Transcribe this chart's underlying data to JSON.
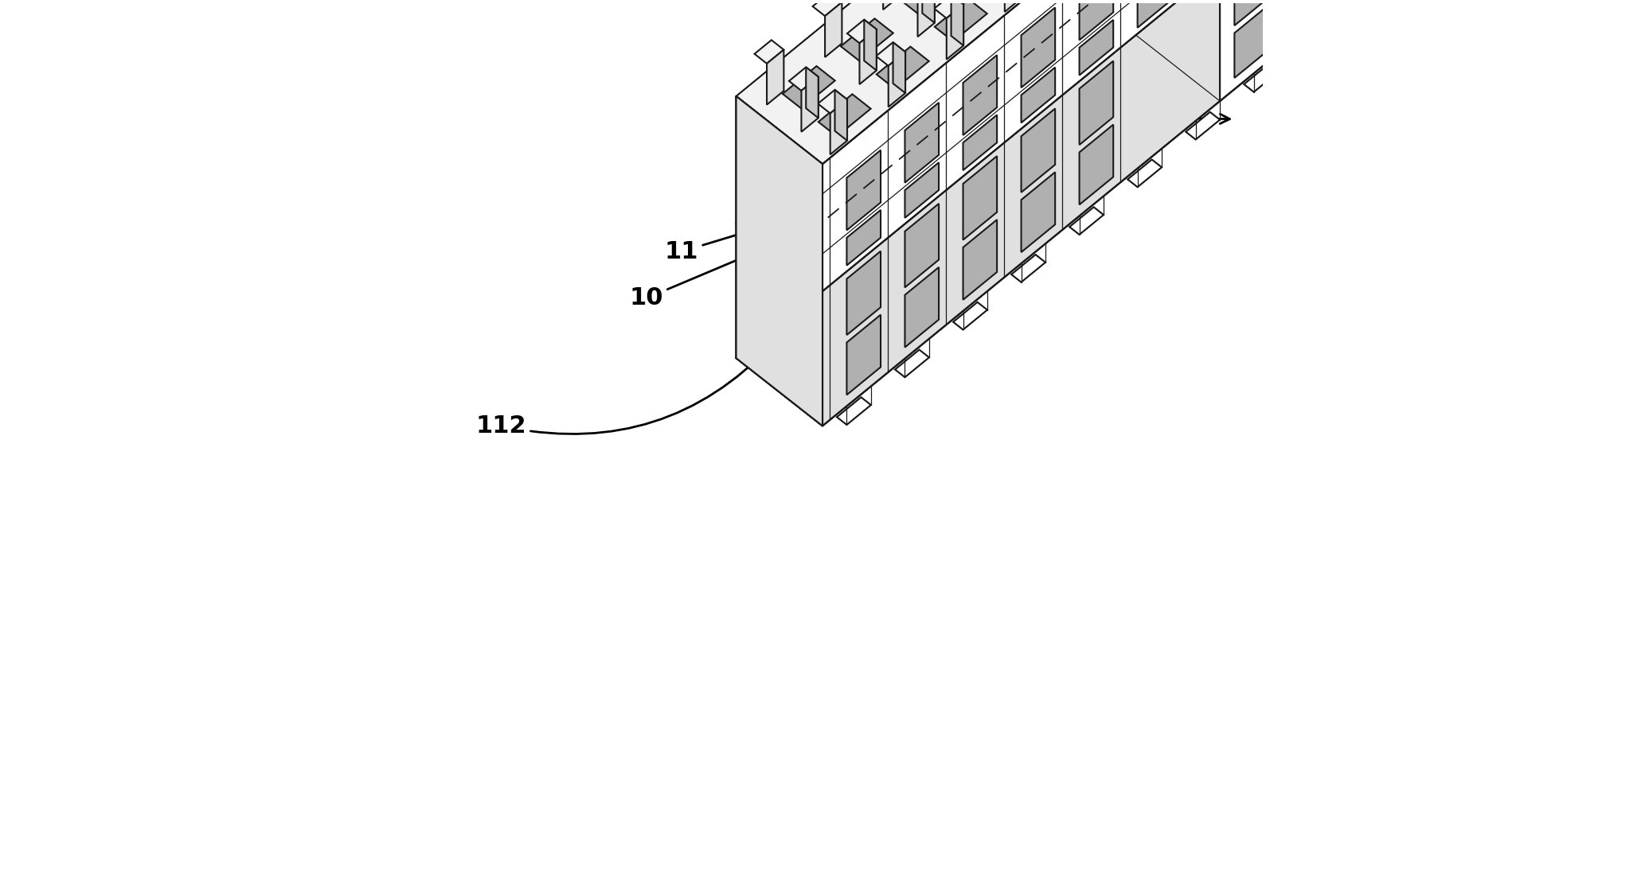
{
  "background_color": "#ffffff",
  "line_color": "#1a1a1a",
  "lw_main": 1.5,
  "lw_thin": 0.9,
  "fig_width": 20.66,
  "fig_height": 11.15,
  "dpi": 100,
  "font_size": 22,
  "font_size_small": 20,
  "c_white": "#ffffff",
  "c_light": "#f2f2f2",
  "c_mid": "#e0e0e0",
  "c_dark": "#c8c8c8",
  "c_slot": "#b0b0b0",
  "c_inner": "#a8a8a8",
  "iso_ox": 0.5,
  "iso_oy": 0.52,
  "iso_ix": 0.055,
  "iso_iy": 0.045,
  "iso_jx": -0.028,
  "iso_jy": 0.022,
  "iso_kx": 0.0,
  "iso_ky": 0.085
}
